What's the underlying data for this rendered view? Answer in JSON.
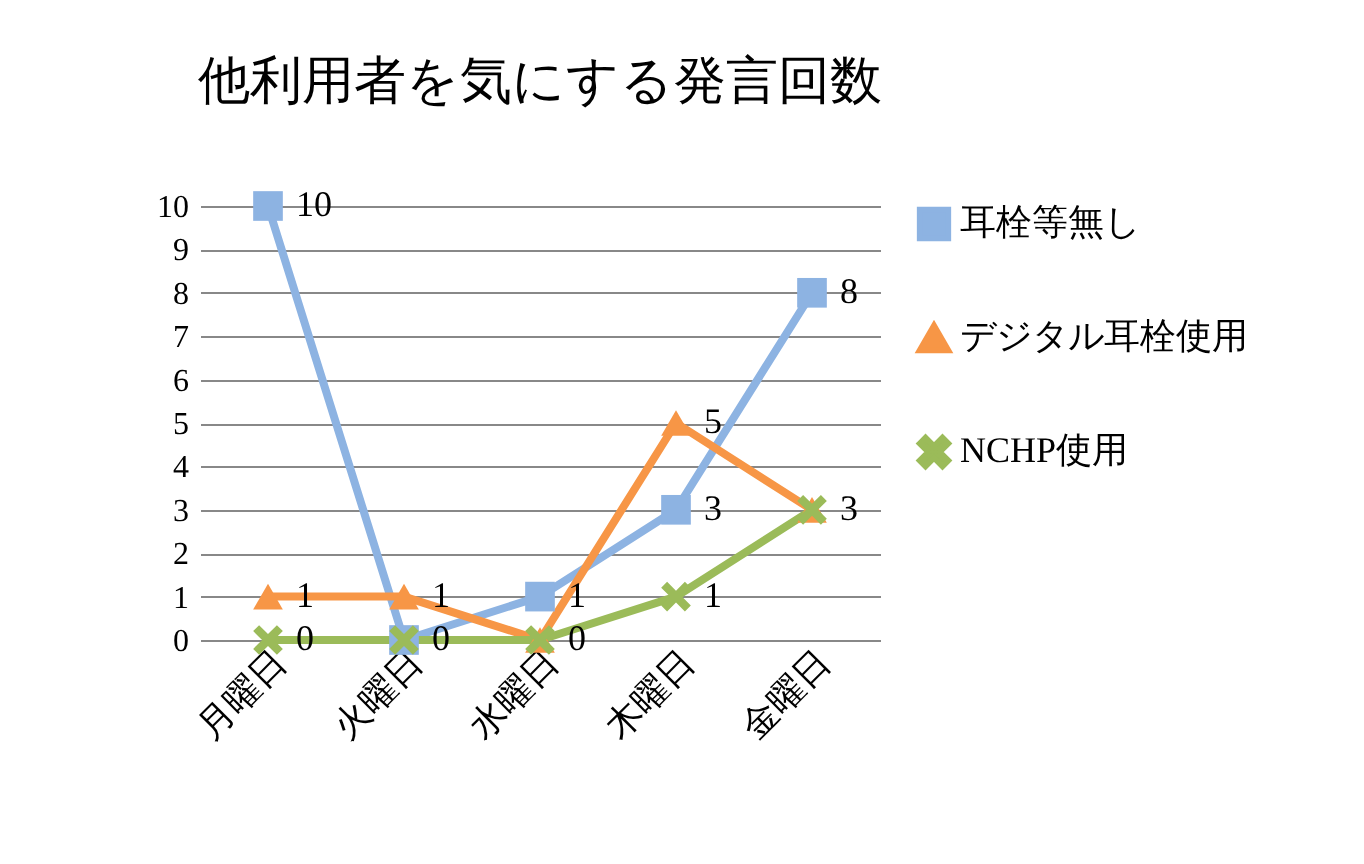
{
  "chart_data": {
    "type": "line",
    "title": "他利用者を気にする発言回数",
    "categories": [
      "月曜日",
      "火曜日",
      "水曜日",
      "木曜日",
      "金曜日"
    ],
    "series": [
      {
        "name": "耳栓等無し",
        "color": "#8db3e2",
        "marker": "square",
        "values": [
          10,
          0,
          1,
          3,
          8
        ],
        "value_labels": [
          "10",
          "0",
          "1",
          "3",
          "8"
        ]
      },
      {
        "name": "デジタル耳栓使用",
        "color": "#f79646",
        "marker": "triangle",
        "values": [
          1,
          1,
          0,
          5,
          3
        ],
        "value_labels": [
          "1",
          "1",
          "0",
          "5",
          "3"
        ]
      },
      {
        "name": "NCHP使用",
        "color": "#9bbb59",
        "marker": "cross",
        "values": [
          0,
          0,
          0,
          1,
          3
        ],
        "value_labels": [
          "0",
          null,
          null,
          "1",
          null
        ]
      }
    ],
    "ylim": [
      0,
      10
    ],
    "yticks": [
      0,
      1,
      2,
      3,
      4,
      5,
      6,
      7,
      8,
      9,
      10
    ],
    "grid": "y",
    "legend": "right",
    "line_style": "solid"
  }
}
